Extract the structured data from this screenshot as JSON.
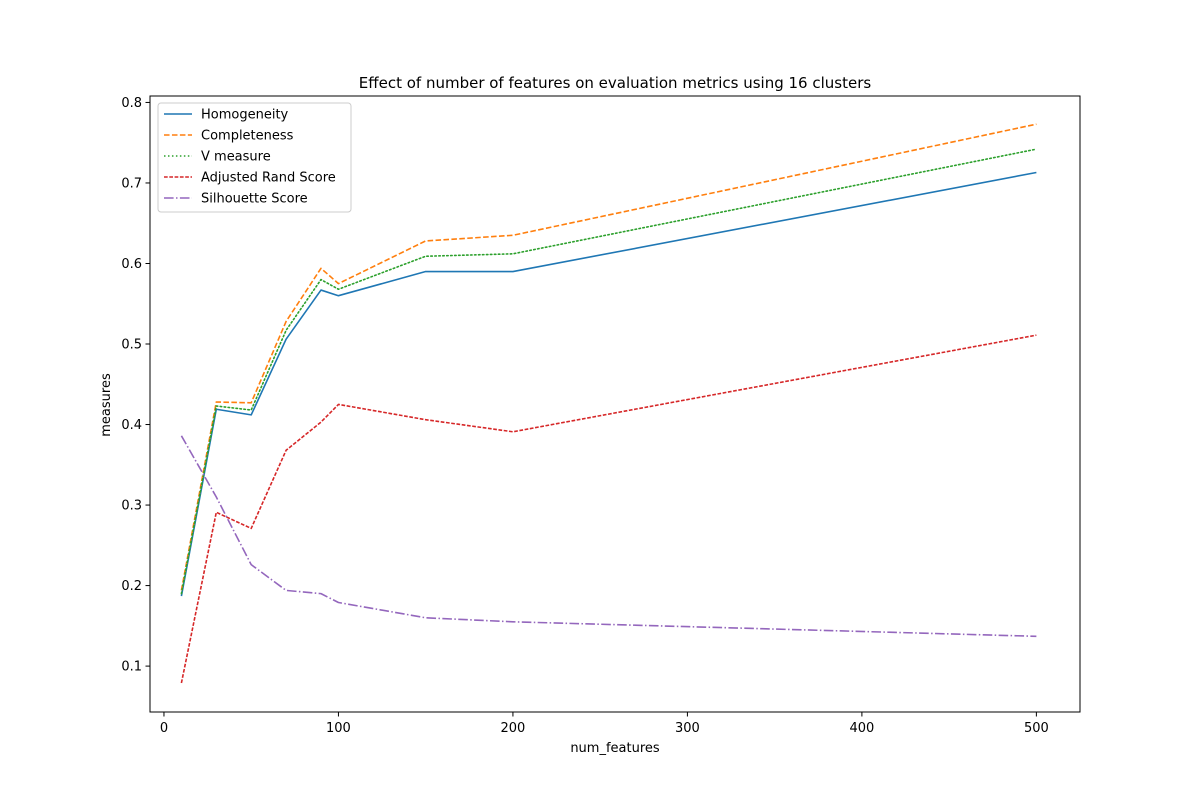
{
  "chart_data": {
    "type": "line",
    "title": "Effect of number of features on evaluation metrics using 16 clusters",
    "xlabel": "num_features",
    "ylabel": "measures",
    "xlim": [
      -8,
      525
    ],
    "ylim": [
      0.043,
      0.808
    ],
    "xticks": [
      0,
      100,
      200,
      300,
      400,
      500
    ],
    "yticks": [
      0.1,
      0.2,
      0.3,
      0.4,
      0.5,
      0.6,
      0.7,
      0.8
    ],
    "x": [
      10,
      30,
      50,
      70,
      90,
      100,
      150,
      200,
      500
    ],
    "grid": false,
    "legend_position": "upper-left",
    "series": [
      {
        "name": "Homogeneity",
        "color": "#1f77b4",
        "dash": "solid",
        "values": [
          0.187,
          0.419,
          0.412,
          0.506,
          0.567,
          0.56,
          0.59,
          0.59,
          0.713
        ]
      },
      {
        "name": "Completeness",
        "color": "#ff7f0e",
        "dash": "dashed",
        "values": [
          0.194,
          0.428,
          0.427,
          0.528,
          0.594,
          0.575,
          0.628,
          0.635,
          0.773
        ]
      },
      {
        "name": "V measure",
        "color": "#2ca02c",
        "dash": "dotted",
        "values": [
          0.19,
          0.423,
          0.418,
          0.517,
          0.58,
          0.568,
          0.609,
          0.612,
          0.742
        ]
      },
      {
        "name": "Adjusted Rand Score",
        "color": "#d62728",
        "dash": "densely-dashed",
        "values": [
          0.079,
          0.291,
          0.271,
          0.368,
          0.403,
          0.425,
          0.406,
          0.391,
          0.511
        ]
      },
      {
        "name": "Silhouette Score",
        "color": "#9467bd",
        "dash": "dashdot",
        "values": [
          0.386,
          0.31,
          0.226,
          0.194,
          0.19,
          0.179,
          0.16,
          0.155,
          0.137
        ]
      }
    ]
  }
}
